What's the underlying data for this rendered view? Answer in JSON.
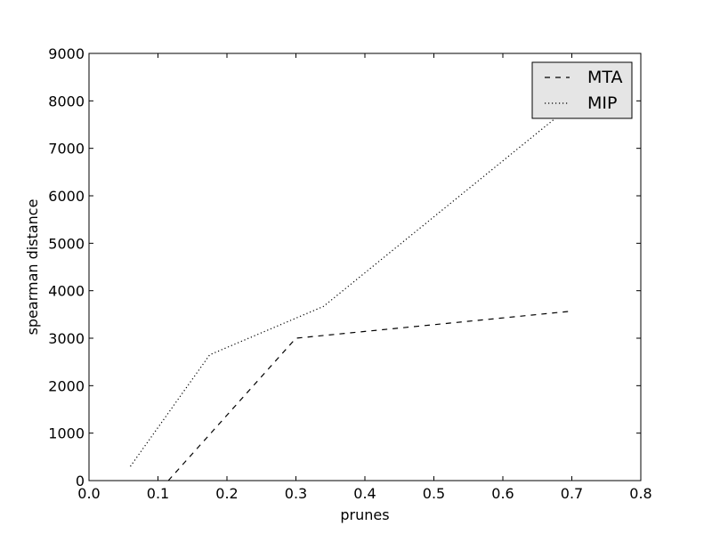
{
  "chart_data": {
    "type": "line",
    "xlabel": "prunes",
    "ylabel": "spearman distance",
    "xlim": [
      0.0,
      0.8
    ],
    "ylim": [
      0,
      9000
    ],
    "xticks": [
      "0.0",
      "0.1",
      "0.2",
      "0.3",
      "0.4",
      "0.5",
      "0.6",
      "0.7",
      "0.8"
    ],
    "yticks": [
      "0",
      "1000",
      "2000",
      "3000",
      "4000",
      "5000",
      "6000",
      "7000",
      "8000",
      "9000"
    ],
    "grid": false,
    "legend_position": "top-right",
    "series": [
      {
        "name": "MTA",
        "style": "dashed",
        "color": "#000000",
        "x": [
          0.115,
          0.3,
          0.7
        ],
        "y": [
          0,
          3000,
          3570
        ]
      },
      {
        "name": "MIP",
        "style": "dotted",
        "color": "#000000",
        "x": [
          0.06,
          0.175,
          0.34,
          0.775
        ],
        "y": [
          300,
          2650,
          3670,
          8800
        ]
      }
    ]
  }
}
